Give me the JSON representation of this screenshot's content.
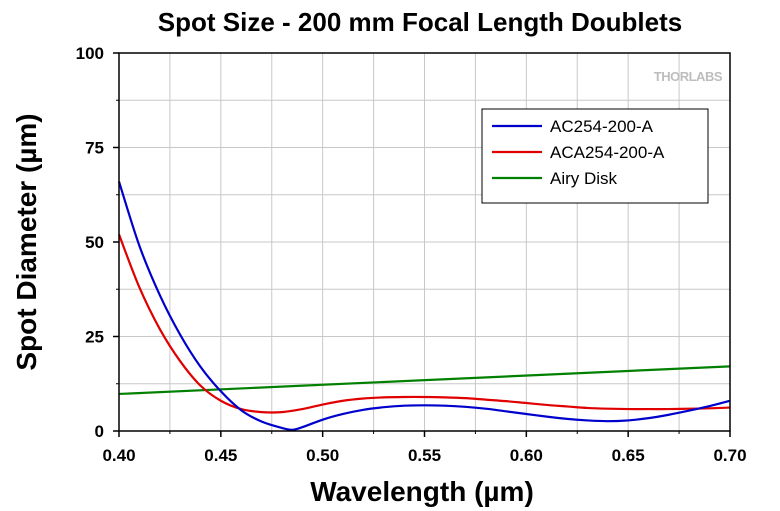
{
  "chart_data": {
    "type": "line",
    "title": "Spot Size - 200 mm Focal Length Doublets",
    "xlabel": "Wavelength (µm)",
    "ylabel": "Spot Diameter (µm)",
    "xlim": [
      0.4,
      0.7
    ],
    "ylim": [
      0,
      100
    ],
    "x_ticks": [
      "0.40",
      "0.45",
      "0.50",
      "0.55",
      "0.60",
      "0.65",
      "0.70"
    ],
    "y_ticks": [
      "0",
      "25",
      "50",
      "75",
      "100"
    ],
    "grid": true,
    "legend_position": "top-right",
    "watermark": "THORLABS",
    "series": [
      {
        "name": "AC254-200-A",
        "color": "#0000cc",
        "x": [
          0.4,
          0.41,
          0.42,
          0.43,
          0.44,
          0.45,
          0.46,
          0.47,
          0.48,
          0.485,
          0.49,
          0.5,
          0.51,
          0.52,
          0.53,
          0.54,
          0.55,
          0.56,
          0.57,
          0.58,
          0.59,
          0.6,
          0.61,
          0.62,
          0.63,
          0.64,
          0.65,
          0.66,
          0.67,
          0.68,
          0.69,
          0.7
        ],
        "y": [
          66,
          49,
          36,
          25.5,
          17,
          10.5,
          5.5,
          2.5,
          0.8,
          0.3,
          1,
          3,
          4.5,
          5.6,
          6.3,
          6.7,
          6.8,
          6.7,
          6.4,
          5.9,
          5.2,
          4.5,
          3.8,
          3.2,
          2.8,
          2.6,
          2.8,
          3.4,
          4.3,
          5.4,
          6.6,
          8
        ]
      },
      {
        "name": "ACA254-200-A",
        "color": "#e00000",
        "x": [
          0.4,
          0.41,
          0.42,
          0.43,
          0.44,
          0.45,
          0.46,
          0.47,
          0.48,
          0.49,
          0.5,
          0.51,
          0.52,
          0.53,
          0.54,
          0.55,
          0.56,
          0.57,
          0.58,
          0.59,
          0.6,
          0.61,
          0.62,
          0.63,
          0.64,
          0.65,
          0.66,
          0.67,
          0.68,
          0.69,
          0.7
        ],
        "y": [
          52,
          38,
          27,
          18.5,
          12,
          8,
          5.8,
          5,
          5,
          5.8,
          7,
          8,
          8.6,
          8.9,
          9,
          9,
          8.9,
          8.7,
          8.3,
          7.9,
          7.4,
          6.9,
          6.5,
          6.1,
          5.9,
          5.8,
          5.8,
          5.8,
          5.9,
          6,
          6.2
        ]
      },
      {
        "name": "Airy Disk",
        "color": "#008000",
        "x": [
          0.4,
          0.7
        ],
        "y": [
          9.8,
          17.1
        ]
      }
    ]
  }
}
